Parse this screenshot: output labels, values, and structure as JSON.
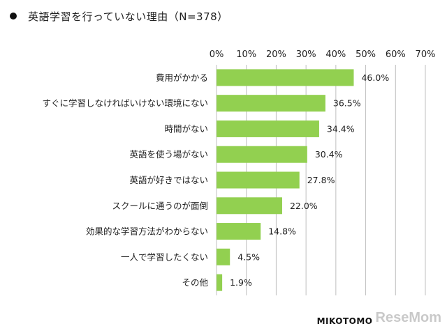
{
  "title": "英語学習を行っていない理由（N=378）",
  "footer_logo": "MIKOTOMO",
  "watermark": "ReseMom",
  "colors": {
    "bar": "#92d050",
    "grid": "#bfbfbf",
    "text": "#222222"
  },
  "chart_data": {
    "type": "bar",
    "orientation": "horizontal",
    "title": "英語学習を行っていない理由（N=378）",
    "categories": [
      "費用がかかる",
      "すぐに学習しなければいけない環境にない",
      "時間がない",
      "英語を使う場がない",
      "英語が好きではない",
      "スクールに通うのが面倒",
      "効果的な学習方法がわからない",
      "一人で学習したくない",
      "その他"
    ],
    "values": [
      46.0,
      36.5,
      34.4,
      30.4,
      27.8,
      22.0,
      14.8,
      4.5,
      1.9
    ],
    "value_labels": [
      "46.0%",
      "36.5%",
      "34.4%",
      "30.4%",
      "27.8%",
      "22.0%",
      "14.8%",
      "4.5%",
      "1.9%"
    ],
    "xlim": [
      0,
      70
    ],
    "xticks": [
      0,
      10,
      20,
      30,
      40,
      50,
      60,
      70
    ],
    "xtick_labels": [
      "0%",
      "10%",
      "20%",
      "30%",
      "40%",
      "50%",
      "60%",
      "70%"
    ],
    "grid": true,
    "x_axis_position": "top"
  }
}
